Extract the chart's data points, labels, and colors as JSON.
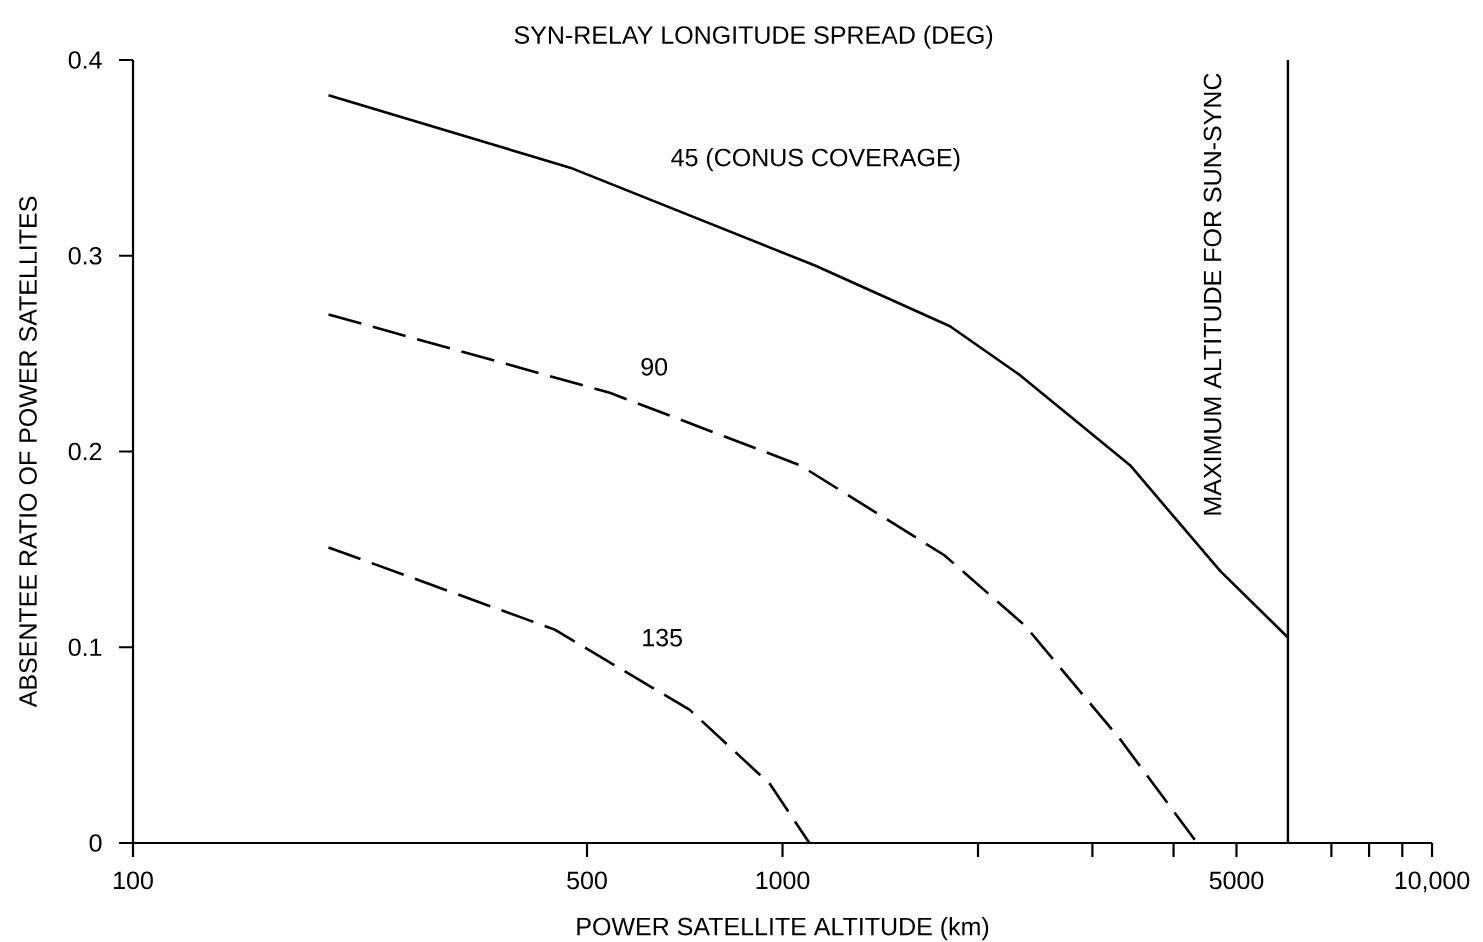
{
  "chart_data": {
    "type": "line",
    "legend_title": "SYN-RELAY LONGITUDE SPREAD (DEG)",
    "xlabel": "POWER SATELLITE ALTITUDE (km)",
    "ylabel": "ABSENTEE RATIO OF POWER SATELLITES",
    "log": "x",
    "xlim": [
      100,
      10000
    ],
    "ylim": [
      0,
      0.4
    ],
    "xticks": [
      100,
      500,
      1000,
      {
        "value": 2000,
        "label": null
      },
      {
        "value": 3000,
        "label": null
      },
      {
        "value": 4000,
        "label": null
      },
      5000,
      {
        "value": 7000,
        "label": null
      },
      {
        "value": 8000,
        "label": null
      },
      {
        "value": 9000,
        "label": null
      },
      {
        "value": 10000,
        "label": "10,000"
      }
    ],
    "yticks": [
      0,
      0.1,
      0.2,
      0.3,
      0.4
    ],
    "series": [
      {
        "name": "45 (CONUS COVERAGE)",
        "color": "#000000",
        "line_style": "solid",
        "x": [
          200,
          471,
          1122,
          1811,
          2321,
          3428,
          4718,
          6000
        ],
        "values": [
          0.382,
          0.345,
          0.295,
          0.264,
          0.239,
          0.193,
          0.139,
          0.105
        ]
      },
      {
        "name": "90",
        "color": "#000000",
        "line_style": "dashed",
        "x": [
          200,
          542,
          1064,
          1775,
          2363,
          3310,
          4350
        ],
        "values": [
          0.27,
          0.23,
          0.193,
          0.147,
          0.111,
          0.053,
          0
        ]
      },
      {
        "name": "135",
        "color": "#000000",
        "line_style": "dashed",
        "x": [
          200,
          446,
          720,
          957,
          1100
        ],
        "values": [
          0.151,
          0.109,
          0.068,
          0.03,
          0
        ]
      }
    ],
    "ref_lines": [
      {
        "axis": "x",
        "value": 6000,
        "label": "MAXIMUM ALTITUDE FOR SUN-SYNC"
      }
    ]
  }
}
